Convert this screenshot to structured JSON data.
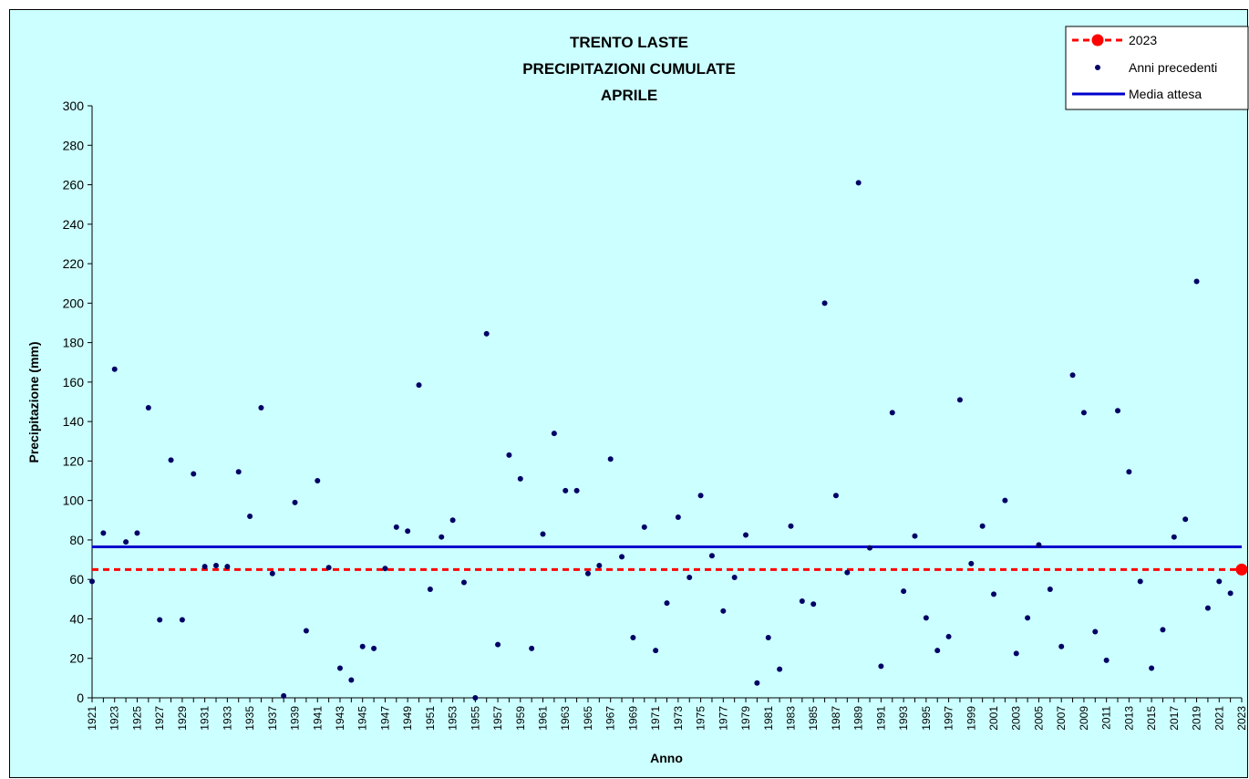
{
  "chart_data": {
    "type": "scatter",
    "title_lines": [
      "TRENTO LASTE",
      "PRECIPITAZIONI CUMULATE",
      "APRILE"
    ],
    "xlabel": "Anno",
    "ylabel": "Precipitazione (mm)",
    "ylim": [
      0,
      300
    ],
    "yticks": [
      0,
      20,
      40,
      60,
      80,
      100,
      120,
      140,
      160,
      180,
      200,
      220,
      240,
      260,
      280,
      300
    ],
    "xlim": [
      1921,
      2023
    ],
    "xticks": [
      1921,
      1923,
      1925,
      1927,
      1929,
      1931,
      1933,
      1935,
      1937,
      1939,
      1941,
      1943,
      1945,
      1947,
      1949,
      1951,
      1953,
      1955,
      1957,
      1959,
      1961,
      1963,
      1965,
      1967,
      1969,
      1971,
      1973,
      1975,
      1977,
      1979,
      1981,
      1983,
      1985,
      1987,
      1989,
      1991,
      1993,
      1995,
      1997,
      1999,
      2001,
      2003,
      2005,
      2007,
      2009,
      2011,
      2013,
      2015,
      2017,
      2019,
      2021,
      2023
    ],
    "grid": false,
    "legend_position": "top-right",
    "legend": {
      "current": "2023",
      "previous": "Anni precedenti",
      "mean": "Media attesa"
    },
    "colors": {
      "background": "#ccffff",
      "previous": "#000066",
      "current": "#ff0000",
      "mean": "#0000cc"
    },
    "mean_value": 76.5,
    "current_year": 2023,
    "current_value": 65,
    "series": [
      {
        "name": "Anni precedenti",
        "x": [
          1921,
          1922,
          1923,
          1924,
          1925,
          1926,
          1927,
          1928,
          1929,
          1930,
          1931,
          1932,
          1933,
          1934,
          1935,
          1936,
          1937,
          1938,
          1939,
          1940,
          1941,
          1942,
          1943,
          1944,
          1945,
          1946,
          1947,
          1948,
          1949,
          1950,
          1951,
          1952,
          1953,
          1954,
          1955,
          1956,
          1957,
          1958,
          1959,
          1960,
          1961,
          1962,
          1963,
          1964,
          1965,
          1966,
          1967,
          1968,
          1969,
          1970,
          1971,
          1972,
          1973,
          1974,
          1975,
          1976,
          1977,
          1978,
          1979,
          1980,
          1981,
          1982,
          1983,
          1984,
          1985,
          1986,
          1987,
          1988,
          1989,
          1990,
          1991,
          1992,
          1993,
          1994,
          1995,
          1996,
          1997,
          1998,
          1999,
          2000,
          2001,
          2002,
          2003,
          2004,
          2005,
          2006,
          2007,
          2008,
          2009,
          2010,
          2011,
          2012,
          2013,
          2014,
          2015,
          2016,
          2017,
          2018,
          2019,
          2020,
          2021,
          2022
        ],
        "y": [
          59,
          83.5,
          166.5,
          79,
          83.5,
          147,
          39.5,
          120.5,
          39.5,
          113.5,
          66.5,
          67,
          66.5,
          114.5,
          92,
          147,
          63,
          1,
          99,
          34,
          110,
          66,
          15,
          9,
          26,
          25,
          65.5,
          86.5,
          84.5,
          158.5,
          55,
          81.5,
          90,
          58.5,
          0,
          184.5,
          27,
          123,
          111,
          25,
          83,
          134,
          105,
          105,
          63,
          67,
          121,
          71.5,
          30.5,
          86.5,
          24,
          48,
          91.5,
          61,
          102.5,
          72,
          44,
          61,
          82.5,
          7.5,
          30.5,
          14.5,
          87,
          49,
          47.5,
          200,
          102.5,
          63.5,
          261,
          76,
          16,
          144.5,
          54,
          82,
          40.5,
          24,
          31,
          151,
          68,
          87,
          52.5,
          100,
          22.5,
          40.5,
          77.5,
          55,
          26,
          163.5,
          144.5,
          33.5,
          19,
          145.5,
          114.5,
          59,
          15,
          34.5,
          81.5,
          90.5,
          211,
          45.5,
          59,
          53
        ]
      },
      {
        "name": "2023",
        "x": [
          2023
        ],
        "y": [
          65
        ]
      }
    ]
  }
}
